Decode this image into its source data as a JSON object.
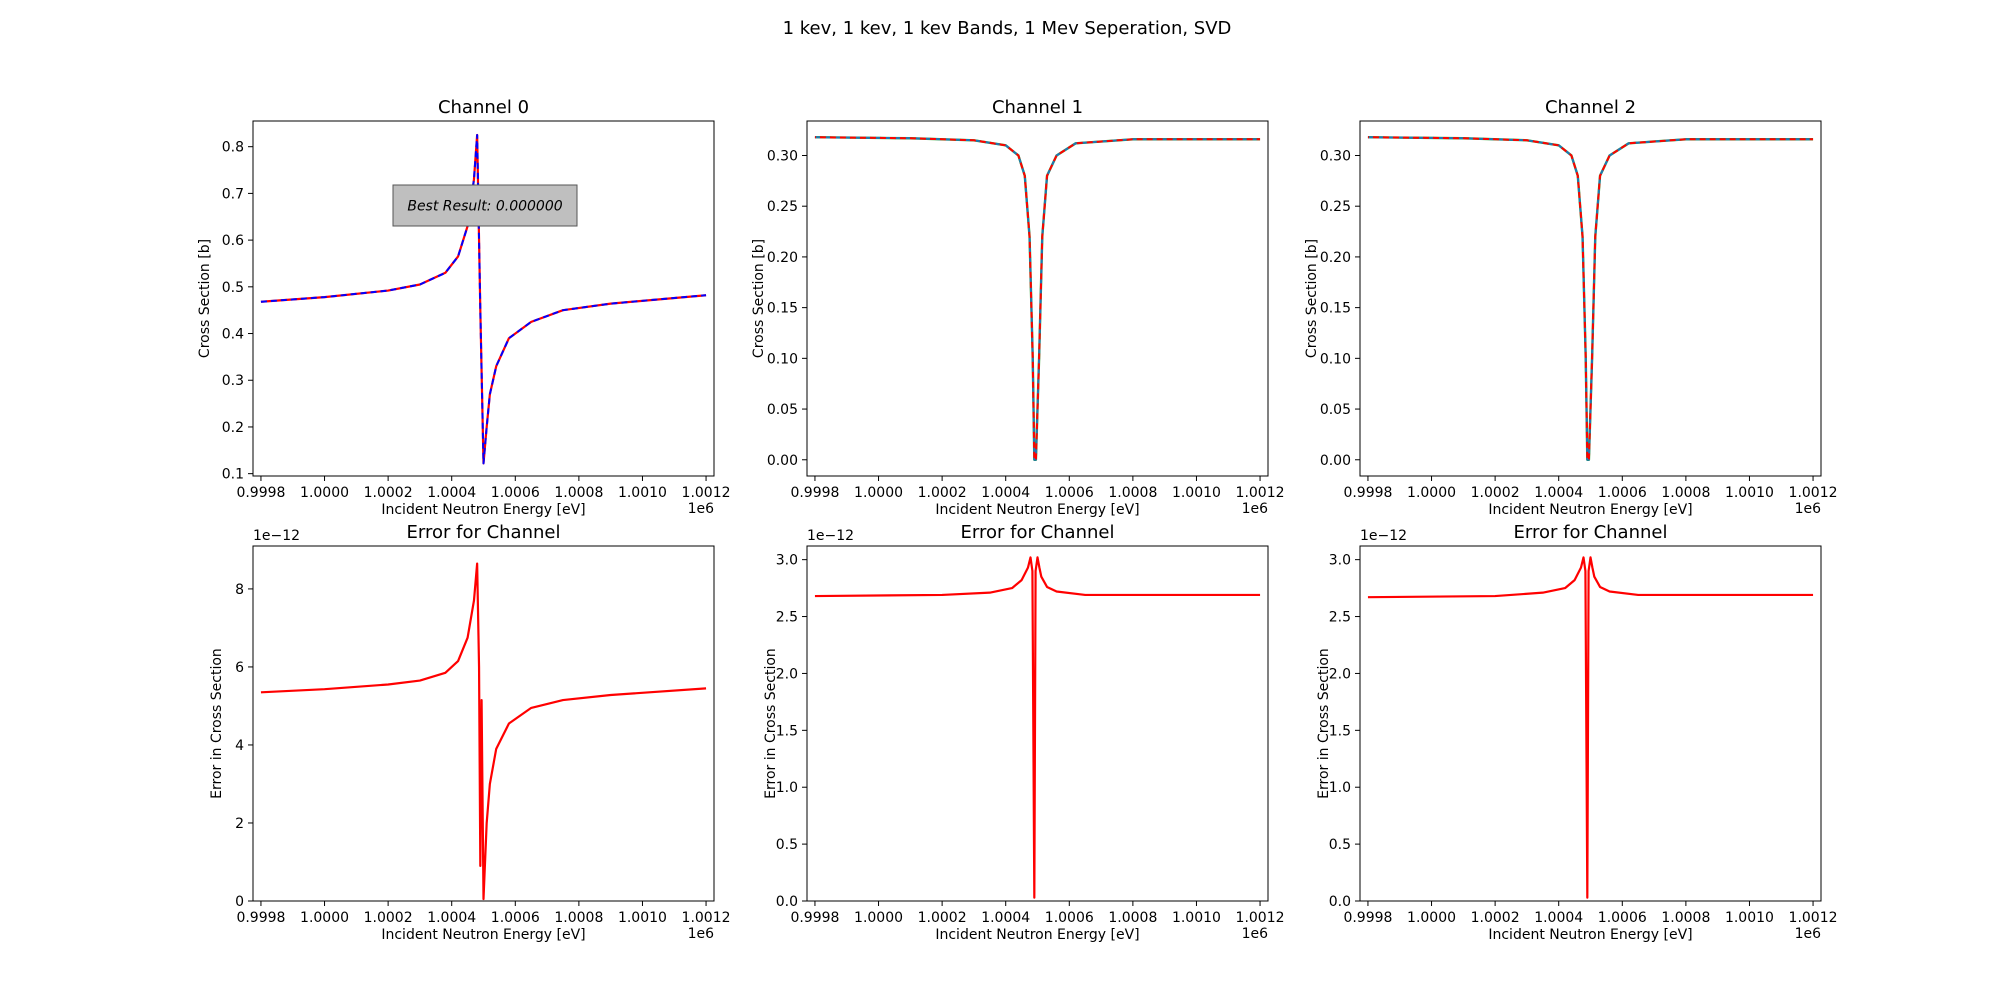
{
  "figure": {
    "suptitle": "1 kev, 1 kev, 1 kev Bands, 1 Mev Seperation, SVD",
    "annotation": "Best Result: 0.000000"
  },
  "colors": {
    "reference": "#ff0000",
    "fit": "#1f77b4",
    "fit_ch0": "#0000ff",
    "channel_green": "#2ca02c",
    "error": "#ff0000",
    "annotation_box": "#bfbfbf"
  },
  "chart_data": [
    {
      "id": "ch0",
      "type": "line",
      "title": "Channel 0",
      "xlabel": "Incident Neutron Energy [eV]",
      "ylabel": "Cross Section [b]",
      "x_offset_label": "1e6",
      "y_offset_label": "",
      "xlim": [
        999775,
        1001225
      ],
      "ylim": [
        0.095,
        0.855
      ],
      "xticks": [
        999800,
        1000000,
        1000200,
        1000400,
        1000600,
        1000800,
        1001000,
        1001200
      ],
      "xtick_labels": [
        "0.9998",
        "1.0000",
        "1.0002",
        "1.0004",
        "1.0006",
        "1.0008",
        "1.0010",
        "1.0012"
      ],
      "yticks": [
        0.1,
        0.2,
        0.3,
        0.4,
        0.5,
        0.6,
        0.7,
        0.8
      ],
      "ytick_labels": [
        "0.1",
        "0.2",
        "0.3",
        "0.4",
        "0.5",
        "0.6",
        "0.7",
        "0.8"
      ],
      "series": [
        {
          "values_key": "a",
          "x": [
            999800,
            1000000,
            1000200,
            1000300,
            1000380,
            1000420,
            1000450,
            1000470,
            1000480,
            1000490,
            1000500,
            1000510,
            1000520,
            1000540,
            1000580,
            1000650,
            1000750,
            1000900,
            1001200
          ],
          "y": [
            0.468,
            0.478,
            0.492,
            0.505,
            0.53,
            0.565,
            0.63,
            0.73,
            0.825,
            0.45,
            0.122,
            0.2,
            0.27,
            0.33,
            0.39,
            0.425,
            0.45,
            0.464,
            0.482
          ]
        },
        {
          "values_key": "b",
          "x": [
            999800,
            1000000,
            1000200,
            1000300,
            1000380,
            1000420,
            1000450,
            1000470,
            1000480,
            1000490,
            1000500,
            1000510,
            1000520,
            1000540,
            1000580,
            1000650,
            1000750,
            1000900,
            1001200
          ],
          "y": [
            0.468,
            0.478,
            0.492,
            0.505,
            0.53,
            0.565,
            0.63,
            0.73,
            0.825,
            0.45,
            0.122,
            0.2,
            0.27,
            0.33,
            0.39,
            0.425,
            0.45,
            0.464,
            0.482
          ]
        }
      ]
    },
    {
      "id": "ch1",
      "type": "line",
      "title": "Channel 1",
      "xlabel": "Incident Neutron Energy [eV]",
      "ylabel": "Cross Section [b]",
      "x_offset_label": "1e6",
      "y_offset_label": "",
      "xlim": [
        999775,
        1001225
      ],
      "ylim": [
        -0.016,
        0.334
      ],
      "xticks": [
        999800,
        1000000,
        1000200,
        1000400,
        1000600,
        1000800,
        1001000,
        1001200
      ],
      "xtick_labels": [
        "0.9998",
        "1.0000",
        "1.0002",
        "1.0004",
        "1.0006",
        "1.0008",
        "1.0010",
        "1.0012"
      ],
      "yticks": [
        0,
        0.05,
        0.1,
        0.15,
        0.2,
        0.25,
        0.3
      ],
      "ytick_labels": [
        "0.00",
        "0.05",
        "0.10",
        "0.15",
        "0.20",
        "0.25",
        "0.30"
      ],
      "series": [
        {
          "values_key": "a",
          "x": [
            999800,
            1000100,
            1000300,
            1000400,
            1000440,
            1000460,
            1000475,
            1000485,
            1000490,
            1000495,
            1000505,
            1000515,
            1000530,
            1000560,
            1000620,
            1000800,
            1001200
          ],
          "y": [
            0.318,
            0.317,
            0.315,
            0.31,
            0.3,
            0.28,
            0.22,
            0.1,
            0.0,
            0.0,
            0.1,
            0.22,
            0.28,
            0.3,
            0.312,
            0.316,
            0.316
          ]
        },
        {
          "values_key": "b",
          "x": [
            999800,
            1000100,
            1000300,
            1000400,
            1000440,
            1000460,
            1000475,
            1000485,
            1000490,
            1000495,
            1000505,
            1000515,
            1000530,
            1000560,
            1000620,
            1000800,
            1001200
          ],
          "y": [
            0.318,
            0.317,
            0.315,
            0.31,
            0.3,
            0.28,
            0.22,
            0.1,
            0.0,
            0.0,
            0.1,
            0.22,
            0.28,
            0.3,
            0.312,
            0.316,
            0.316
          ]
        }
      ]
    },
    {
      "id": "ch2",
      "type": "line",
      "title": "Channel 2",
      "xlabel": "Incident Neutron Energy [eV]",
      "ylabel": "Cross Section [b]",
      "x_offset_label": "1e6",
      "y_offset_label": "",
      "xlim": [
        999775,
        1001225
      ],
      "ylim": [
        -0.016,
        0.334
      ],
      "xticks": [
        999800,
        1000000,
        1000200,
        1000400,
        1000600,
        1000800,
        1001000,
        1001200
      ],
      "xtick_labels": [
        "0.9998",
        "1.0000",
        "1.0002",
        "1.0004",
        "1.0006",
        "1.0008",
        "1.0010",
        "1.0012"
      ],
      "yticks": [
        0,
        0.05,
        0.1,
        0.15,
        0.2,
        0.25,
        0.3
      ],
      "ytick_labels": [
        "0.00",
        "0.05",
        "0.10",
        "0.15",
        "0.20",
        "0.25",
        "0.30"
      ],
      "series": [
        {
          "values_key": "a",
          "x": [
            999800,
            1000100,
            1000300,
            1000400,
            1000440,
            1000460,
            1000475,
            1000485,
            1000490,
            1000495,
            1000505,
            1000515,
            1000530,
            1000560,
            1000620,
            1000800,
            1001200
          ],
          "y": [
            0.318,
            0.317,
            0.315,
            0.31,
            0.3,
            0.28,
            0.22,
            0.1,
            0.0,
            0.0,
            0.1,
            0.22,
            0.28,
            0.3,
            0.312,
            0.316,
            0.316
          ]
        },
        {
          "values_key": "b",
          "x": [
            999800,
            1000100,
            1000300,
            1000400,
            1000440,
            1000460,
            1000475,
            1000485,
            1000490,
            1000495,
            1000505,
            1000515,
            1000530,
            1000560,
            1000620,
            1000800,
            1001200
          ],
          "y": [
            0.318,
            0.317,
            0.315,
            0.31,
            0.3,
            0.28,
            0.22,
            0.1,
            0.0,
            0.0,
            0.1,
            0.22,
            0.28,
            0.3,
            0.312,
            0.316,
            0.316
          ]
        }
      ]
    },
    {
      "id": "err0",
      "type": "line",
      "title": "Error for Channel",
      "xlabel": "Incident Neutron Energy [eV]",
      "ylabel": "Error in Cross Section",
      "x_offset_label": "1e6",
      "y_offset_label": "1e−12",
      "xlim": [
        999775,
        1001225
      ],
      "ylim": [
        0,
        9.1
      ],
      "xticks": [
        999800,
        1000000,
        1000200,
        1000400,
        1000600,
        1000800,
        1001000,
        1001200
      ],
      "xtick_labels": [
        "0.9998",
        "1.0000",
        "1.0002",
        "1.0004",
        "1.0006",
        "1.0008",
        "1.0010",
        "1.0012"
      ],
      "yticks": [
        0,
        2,
        4,
        6,
        8
      ],
      "ytick_labels": [
        "0",
        "2",
        "4",
        "6",
        "8"
      ],
      "series": [
        {
          "values_key": "e",
          "x": [
            999800,
            1000000,
            1000200,
            1000300,
            1000380,
            1000420,
            1000450,
            1000470,
            1000480,
            1000486,
            1000490,
            1000494,
            1000500,
            1000510,
            1000520,
            1000540,
            1000580,
            1000650,
            1000750,
            1000900,
            1001200
          ],
          "y": [
            5.35,
            5.43,
            5.55,
            5.65,
            5.85,
            6.15,
            6.75,
            7.7,
            8.65,
            6.0,
            0.9,
            5.15,
            0.05,
            2.0,
            3.0,
            3.9,
            4.55,
            4.95,
            5.15,
            5.28,
            5.45
          ]
        }
      ]
    },
    {
      "id": "err1",
      "type": "line",
      "title": "Error for Channel",
      "xlabel": "Incident Neutron Energy [eV]",
      "ylabel": "Error in Cross Section",
      "x_offset_label": "1e6",
      "y_offset_label": "1e−12",
      "xlim": [
        999775,
        1001225
      ],
      "ylim": [
        0,
        3.12
      ],
      "xticks": [
        999800,
        1000000,
        1000200,
        1000400,
        1000600,
        1000800,
        1001000,
        1001200
      ],
      "xtick_labels": [
        "0.9998",
        "1.0000",
        "1.0002",
        "1.0004",
        "1.0006",
        "1.0008",
        "1.0010",
        "1.0012"
      ],
      "yticks": [
        0,
        0.5,
        1.0,
        1.5,
        2.0,
        2.5,
        3.0
      ],
      "ytick_labels": [
        "0.0",
        "0.5",
        "1.0",
        "1.5",
        "2.0",
        "2.5",
        "3.0"
      ],
      "series": [
        {
          "values_key": "e",
          "x": [
            999800,
            1000200,
            1000350,
            1000420,
            1000450,
            1000470,
            1000478,
            1000484,
            1000490,
            1000494,
            1000500,
            1000506,
            1000512,
            1000530,
            1000560,
            1000650,
            1001200
          ],
          "y": [
            2.68,
            2.69,
            2.71,
            2.75,
            2.82,
            2.93,
            3.02,
            2.9,
            0.03,
            2.9,
            3.02,
            2.93,
            2.85,
            2.76,
            2.72,
            2.69,
            2.69
          ]
        }
      ]
    },
    {
      "id": "err2",
      "type": "line",
      "title": "Error for Channel",
      "xlabel": "Incident Neutron Energy [eV]",
      "ylabel": "Error in Cross Section",
      "x_offset_label": "1e6",
      "y_offset_label": "1e−12",
      "xlim": [
        999775,
        1001225
      ],
      "ylim": [
        0,
        3.12
      ],
      "xticks": [
        999800,
        1000000,
        1000200,
        1000400,
        1000600,
        1000800,
        1001000,
        1001200
      ],
      "xtick_labels": [
        "0.9998",
        "1.0000",
        "1.0002",
        "1.0004",
        "1.0006",
        "1.0008",
        "1.0010",
        "1.0012"
      ],
      "yticks": [
        0,
        0.5,
        1.0,
        1.5,
        2.0,
        2.5,
        3.0
      ],
      "ytick_labels": [
        "0.0",
        "0.5",
        "1.0",
        "1.5",
        "2.0",
        "2.5",
        "3.0"
      ],
      "series": [
        {
          "values_key": "e",
          "x": [
            999800,
            1000200,
            1000350,
            1000420,
            1000450,
            1000470,
            1000478,
            1000484,
            1000490,
            1000494,
            1000500,
            1000506,
            1000512,
            1000530,
            1000560,
            1000650,
            1001200
          ],
          "y": [
            2.67,
            2.68,
            2.71,
            2.75,
            2.82,
            2.93,
            3.02,
            2.9,
            0.03,
            2.9,
            3.02,
            2.93,
            2.85,
            2.76,
            2.72,
            2.69,
            2.69
          ]
        }
      ]
    }
  ]
}
